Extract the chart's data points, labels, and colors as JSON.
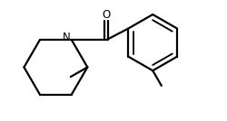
{
  "background_color": "#ffffff",
  "line_color": "#000000",
  "line_width": 1.6,
  "fig_width": 2.5,
  "fig_height": 1.34,
  "dpi": 100,
  "N_label": "N",
  "O_label": "O"
}
